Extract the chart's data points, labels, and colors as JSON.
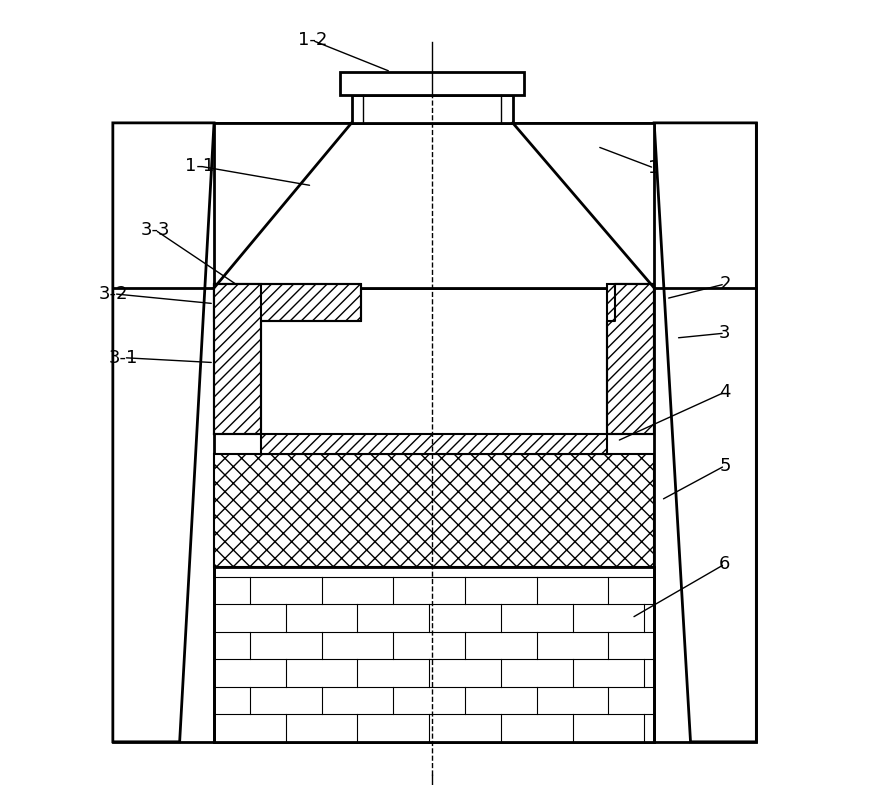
{
  "figsize": [
    8.8,
    7.92
  ],
  "dpi": 100,
  "bg_color": "#ffffff",
  "line_color": "#000000",
  "label_fontsize": 13
}
